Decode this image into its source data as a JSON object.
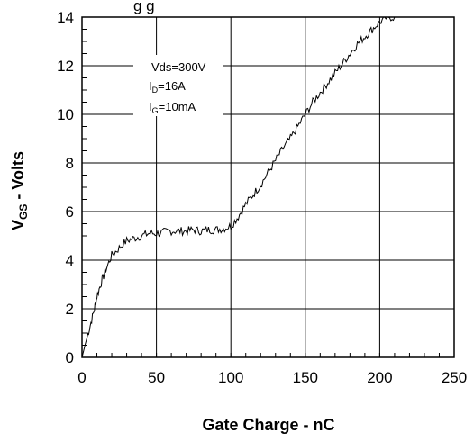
{
  "chart_data": {
    "type": "line",
    "title_fragment": "g                    g",
    "xlabel": "Gate Charge - nC",
    "ylabel_main": "V",
    "ylabel_sub": "GS",
    "ylabel_rest": " - Volts",
    "xlim": [
      0,
      250
    ],
    "ylim": [
      0,
      14
    ],
    "xticks": [
      "0",
      "50",
      "100",
      "150",
      "200",
      "250"
    ],
    "yticks": [
      "0",
      "2",
      "4",
      "6",
      "8",
      "10",
      "12",
      "14"
    ],
    "grid": true,
    "annotation": {
      "line1": "Vds=300V",
      "line2_main": "I",
      "line2_sub": "D",
      "line2_rest": "=16A",
      "line3_main": "I",
      "line3_sub": "G",
      "line3_rest": "=10mA"
    },
    "series": [
      {
        "x": [
          0,
          2,
          5,
          8,
          10,
          13,
          16,
          20,
          25,
          30,
          35,
          40,
          45,
          50,
          55,
          60,
          65,
          70,
          75,
          80,
          85,
          90,
          95,
          100,
          105,
          110,
          115,
          120,
          125,
          130,
          135,
          140,
          145,
          150,
          155,
          160,
          165,
          170,
          175,
          180,
          185,
          190,
          195,
          200,
          205,
          210
        ],
        "y": [
          0.0,
          0.5,
          1.2,
          1.9,
          2.5,
          3.1,
          3.6,
          4.2,
          4.5,
          4.8,
          4.9,
          5.0,
          5.1,
          5.1,
          5.15,
          5.2,
          5.2,
          5.2,
          5.25,
          5.2,
          5.25,
          5.25,
          5.3,
          5.4,
          5.8,
          6.3,
          6.7,
          7.1,
          7.6,
          8.1,
          8.6,
          9.0,
          9.5,
          10.0,
          10.5,
          10.9,
          11.3,
          11.7,
          12.1,
          12.5,
          12.9,
          13.2,
          13.5,
          13.8,
          14.0,
          14.0
        ]
      }
    ]
  }
}
